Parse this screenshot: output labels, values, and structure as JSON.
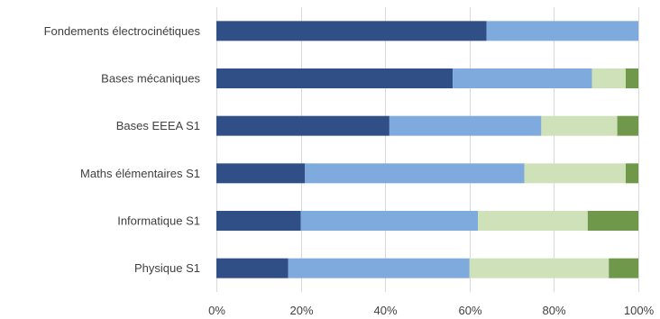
{
  "chart_data": {
    "type": "bar",
    "orientation": "horizontal",
    "stacked": true,
    "normalized": true,
    "title": "",
    "xlabel": "",
    "ylabel": "",
    "xlim": [
      0,
      100
    ],
    "x_ticks": [
      "0%",
      "20%",
      "40%",
      "60%",
      "80%",
      "100%"
    ],
    "grid": true,
    "legend": "none",
    "categories": [
      "Fondements électrocinétiques",
      "Bases mécaniques",
      "Bases EEEA S1",
      "Maths élémentaires S1",
      "Informatique S1",
      "Physique S1"
    ],
    "series": [
      {
        "color": "#2f4f86",
        "values": [
          64,
          56,
          41,
          21,
          20,
          17
        ]
      },
      {
        "color": "#7faadd",
        "values": [
          36,
          33,
          36,
          52,
          42,
          43
        ]
      },
      {
        "color": "#cfe1b9",
        "values": [
          0,
          8,
          18,
          24,
          26,
          33
        ]
      },
      {
        "color": "#70984a",
        "values": [
          0,
          3,
          5,
          3,
          12,
          7
        ]
      }
    ]
  }
}
